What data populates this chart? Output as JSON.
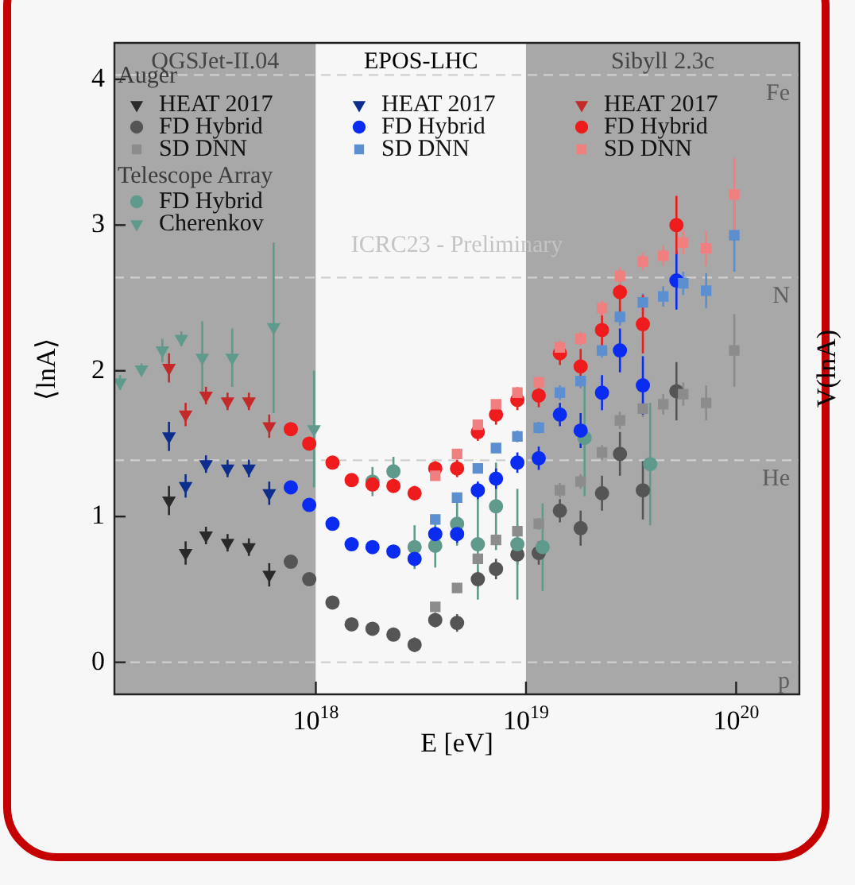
{
  "chart_data": {
    "type": "scatter",
    "xlabel": "E [eV]",
    "ylabel": "⟨lnA⟩",
    "y2label": "V(lnA)",
    "log": "x",
    "grid": false,
    "legend": "top left",
    "xlim": [
      1.1e+17,
      2e+20
    ],
    "xticks": [
      {
        "value": 1e+18,
        "label": "10$^{18}$"
      },
      {
        "value": 1e+19,
        "label": "10$^{19}$"
      },
      {
        "value": 1e+20,
        "label": "10$^{20}$"
      }
    ],
    "ylim": [
      -0.22,
      4.25
    ],
    "yticks": [
      0,
      1,
      2,
      3,
      4
    ],
    "bands": [
      {
        "axis": "x",
        "from": 1.1e+17,
        "to": 1e+18,
        "label": "QGSJet-II.04",
        "color": "#a8a8a8"
      },
      {
        "axis": "x",
        "from": 1e+18,
        "to": 1e+19,
        "label": "EPOS-LHC",
        "color": "#f7f7f7"
      },
      {
        "axis": "x",
        "from": 1e+19,
        "to": 2e+20,
        "label": "Sibyll 2.3c",
        "color": "#a8a8a8"
      }
    ],
    "ref_lines": [
      {
        "axis": "y",
        "value": 0,
        "label": "p",
        "line_style": "dashed",
        "color": "#cfcfcf"
      },
      {
        "axis": "y",
        "value": 1.386,
        "label": "He",
        "line_style": "dashed",
        "color": "#cfcfcf"
      },
      {
        "axis": "y",
        "value": 2.64,
        "label": "N",
        "line_style": "dashed",
        "color": "#cfcfcf"
      },
      {
        "axis": "y",
        "value": 4.03,
        "label": "Fe",
        "line_style": "dashed",
        "color": "#cfcfcf"
      }
    ],
    "annotations": [
      "Auger",
      "Telescope Array",
      "ICRC23 - Preliminary"
    ],
    "series": [
      {
        "name": "HEAT 2017",
        "color": "#2a2a2a",
        "marker": "triangle",
        "x": [
          2e+17,
          2.4e+17,
          3e+17,
          3.8e+17,
          4.8e+17,
          6e+17
        ],
        "values": [
          1.11,
          0.75,
          0.87,
          0.82,
          0.79,
          0.6
        ],
        "errors": [
          0.1,
          0.08,
          0.06,
          0.06,
          0.06,
          0.08
        ]
      },
      {
        "name": "FD Hybrid",
        "color": "#555555",
        "marker": "circle",
        "x": [
          7.6e+17,
          9.3e+17,
          1.2e+18,
          1.48e+18,
          1.86e+18,
          2.34e+18,
          2.95e+18,
          3.7e+18,
          4.7e+18,
          5.9e+18,
          7.2e+18,
          9.1e+18,
          1.15e+19,
          1.45e+19,
          1.82e+19,
          2.3e+19,
          2.8e+19,
          3.6e+19,
          5.2e+19
        ],
        "values": [
          0.69,
          0.57,
          0.41,
          0.26,
          0.23,
          0.19,
          0.12,
          0.29,
          0.27,
          0.57,
          0.64,
          0.74,
          0.75,
          1.04,
          0.92,
          1.16,
          1.43,
          1.18,
          1.86
        ],
        "errors": [
          0.04,
          0.04,
          0.04,
          0.04,
          0.04,
          0.04,
          0.05,
          0.05,
          0.06,
          0.06,
          0.07,
          0.07,
          0.08,
          0.08,
          0.12,
          0.12,
          0.15,
          0.2,
          0.2
        ]
      },
      {
        "name": "SD DNN",
        "color": "#8c8c8c",
        "marker": "square",
        "x": [
          3.7e+18,
          4.7e+18,
          5.9e+18,
          7.2e+18,
          9.1e+18,
          1.15e+19,
          1.45e+19,
          1.82e+19,
          2.3e+19,
          2.8e+19,
          3.6e+19,
          4.5e+19,
          5.6e+19,
          7.2e+19,
          9.8e+19
        ],
        "values": [
          0.38,
          0.51,
          0.71,
          0.84,
          0.9,
          0.95,
          1.18,
          1.24,
          1.44,
          1.66,
          1.74,
          1.77,
          1.84,
          1.78,
          2.14
        ],
        "errors": [
          0.03,
          0.03,
          0.03,
          0.03,
          0.04,
          0.04,
          0.05,
          0.05,
          0.05,
          0.06,
          0.06,
          0.07,
          0.08,
          0.12,
          0.25
        ]
      },
      {
        "name": "FD Hybrid",
        "color": "#5f9a8c",
        "marker": "circle",
        "x": [
          1.86e+18,
          2.34e+18,
          2.95e+18,
          3.7e+18,
          4.7e+18,
          5.9e+18,
          7.2e+18,
          9.1e+18,
          1.2e+19,
          1.9e+19,
          3.9e+19
        ],
        "values": [
          1.24,
          1.31,
          0.79,
          0.8,
          0.95,
          0.81,
          1.07,
          0.81,
          0.79,
          1.54,
          1.36
        ],
        "errors": [
          0.1,
          0.1,
          0.15,
          0.15,
          0.15,
          0.38,
          0.3,
          0.38,
          0.3,
          0.4,
          0.42
        ]
      },
      {
        "name": "Cherenkov",
        "color": "#5f9a8c",
        "marker": "triangle",
        "x": [
          1.17e+17,
          1.48e+17,
          1.86e+17,
          2.29e+17,
          2.88e+17,
          4e+17,
          6.3e+17,
          9.8e+17
        ],
        "values": [
          1.92,
          2.01,
          2.14,
          2.22,
          2.09,
          2.09,
          2.3,
          1.6
        ],
        "errors": [
          0.05,
          0.04,
          0.08,
          0.05,
          0.25,
          0.2,
          [
            1.71,
            2.88
          ],
          0.4
        ]
      },
      {
        "name": "HEAT 2017",
        "color": "#0d2e8c",
        "marker": "triangle",
        "x": [
          2e+17,
          2.4e+17,
          3e+17,
          3.8e+17,
          4.8e+17,
          6e+17
        ],
        "values": [
          1.55,
          1.21,
          1.36,
          1.33,
          1.33,
          1.16
        ],
        "errors": [
          0.1,
          0.08,
          0.06,
          0.06,
          0.06,
          0.08
        ]
      },
      {
        "name": "FD Hybrid",
        "color": "#0a2cf0",
        "marker": "circle",
        "x": [
          7.6e+17,
          9.3e+17,
          1.2e+18,
          1.48e+18,
          1.86e+18,
          2.34e+18,
          2.95e+18,
          3.7e+18,
          4.7e+18,
          5.9e+18,
          7.2e+18,
          9.1e+18,
          1.15e+19,
          1.45e+19,
          1.82e+19,
          2.3e+19,
          2.8e+19,
          3.6e+19,
          5.2e+19
        ],
        "values": [
          1.2,
          1.08,
          0.95,
          0.81,
          0.79,
          0.76,
          0.71,
          0.88,
          0.88,
          1.18,
          1.26,
          1.37,
          1.4,
          1.7,
          1.59,
          1.85,
          2.14,
          1.9,
          2.62
        ],
        "errors": [
          0.04,
          0.04,
          0.04,
          0.04,
          0.04,
          0.04,
          0.05,
          0.05,
          0.06,
          0.06,
          0.07,
          0.07,
          0.08,
          0.08,
          0.12,
          0.12,
          0.15,
          0.2,
          0.2
        ]
      },
      {
        "name": "SD DNN",
        "color": "#5b8fd0",
        "marker": "square",
        "x": [
          3.7e+18,
          4.7e+18,
          5.9e+18,
          7.2e+18,
          9.1e+18,
          1.15e+19,
          1.45e+19,
          1.82e+19,
          2.3e+19,
          2.8e+19,
          3.6e+19,
          4.5e+19,
          5.6e+19,
          7.2e+19,
          9.8e+19
        ],
        "values": [
          0.98,
          1.13,
          1.33,
          1.47,
          1.55,
          1.61,
          1.85,
          1.93,
          2.14,
          2.37,
          2.47,
          2.51,
          2.6,
          2.55,
          2.93
        ],
        "errors": [
          0.03,
          0.03,
          0.03,
          0.03,
          0.04,
          0.04,
          0.05,
          0.05,
          0.05,
          0.06,
          0.06,
          0.07,
          0.08,
          0.12,
          0.25
        ]
      },
      {
        "name": "HEAT 2017",
        "color": "#c42a2a",
        "marker": "triangle",
        "x": [
          2e+17,
          2.4e+17,
          3e+17,
          3.8e+17,
          4.8e+17,
          6e+17
        ],
        "values": [
          2.02,
          1.7,
          1.83,
          1.79,
          1.79,
          1.62
        ],
        "errors": [
          0.1,
          0.08,
          0.06,
          0.06,
          0.06,
          0.08
        ]
      },
      {
        "name": "FD Hybrid",
        "color": "#ee1c1c",
        "marker": "circle",
        "x": [
          7.6e+17,
          9.3e+17,
          1.2e+18,
          1.48e+18,
          1.86e+18,
          2.34e+18,
          2.95e+18,
          3.7e+18,
          4.7e+18,
          5.9e+18,
          7.2e+18,
          9.1e+18,
          1.15e+19,
          1.45e+19,
          1.82e+19,
          2.3e+19,
          2.8e+19,
          3.6e+19,
          5.2e+19
        ],
        "values": [
          1.6,
          1.5,
          1.37,
          1.25,
          1.22,
          1.21,
          1.16,
          1.33,
          1.33,
          1.58,
          1.7,
          1.8,
          1.83,
          2.12,
          2.03,
          2.28,
          2.54,
          2.32,
          3.0
        ],
        "errors": [
          0.04,
          0.04,
          0.04,
          0.04,
          0.04,
          0.04,
          0.05,
          0.05,
          0.06,
          0.06,
          0.07,
          0.07,
          0.08,
          0.08,
          0.12,
          0.12,
          0.15,
          0.2,
          0.2
        ]
      },
      {
        "name": "SD DNN",
        "color": "#f07f80",
        "marker": "square",
        "x": [
          3.7e+18,
          4.7e+18,
          5.9e+18,
          7.2e+18,
          9.1e+18,
          1.15e+19,
          1.45e+19,
          1.82e+19,
          2.3e+19,
          2.8e+19,
          3.6e+19,
          4.5e+19,
          5.6e+19,
          7.2e+19,
          9.8e+19
        ],
        "values": [
          1.28,
          1.43,
          1.63,
          1.77,
          1.85,
          1.92,
          2.16,
          2.22,
          2.43,
          2.65,
          2.75,
          2.79,
          2.88,
          2.84,
          3.21
        ],
        "errors": [
          0.03,
          0.03,
          0.03,
          0.03,
          0.04,
          0.04,
          0.05,
          0.05,
          0.05,
          0.06,
          0.06,
          0.07,
          0.08,
          0.12,
          0.25
        ]
      }
    ]
  }
}
